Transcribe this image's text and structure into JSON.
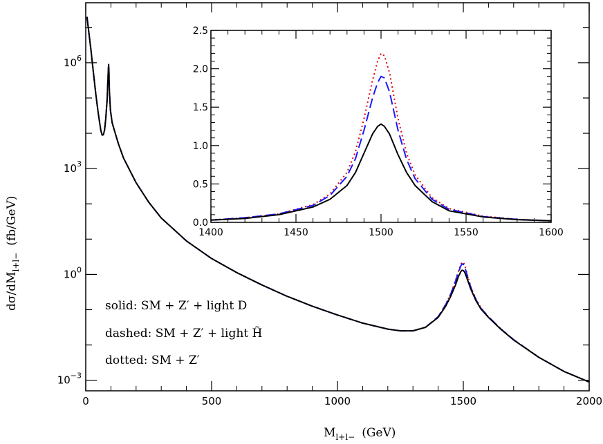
{
  "chart_data": [
    {
      "type": "line",
      "xlabel": "M_{l+l-} (GeV)",
      "xlabel_main": "M",
      "xlabel_sub": "l+l−",
      "xlabel_unit": "(GeV)",
      "ylabel": "dσ/dM_{l+l-} (fb/GeV)",
      "ylabel_main": "dσ/dM",
      "ylabel_sub": "l+l−",
      "ylabel_unit": "(fb/GeV)",
      "xlim": [
        0,
        2000
      ],
      "ylog": true,
      "ylim_log10": [
        -3.3,
        7.7
      ],
      "x_ticks": [
        {
          "value": 0,
          "label": "0"
        },
        {
          "value": 500,
          "label": "500"
        },
        {
          "value": 1000,
          "label": "1000"
        },
        {
          "value": 1500,
          "label": "1500"
        },
        {
          "value": 2000,
          "label": "2000"
        }
      ],
      "y_ticks": [
        {
          "log10": 6,
          "base": "10",
          "exp": "6"
        },
        {
          "log10": 3,
          "base": "10",
          "exp": "3"
        },
        {
          "log10": 0,
          "base": "10",
          "exp": "0"
        },
        {
          "log10": -3,
          "base": "10",
          "exp": "−3"
        }
      ],
      "legend": [
        {
          "style": "solid",
          "text": "solid: SM + Z′ + light D"
        },
        {
          "style": "dashed",
          "text": "dashed: SM + Z′ + light ",
          "text_suffix": "H̃"
        },
        {
          "style": "dotted",
          "text": "dotted: SM + Z′"
        }
      ],
      "legend_placement": "lower-left",
      "series": [
        {
          "style": "dotted",
          "color": "#e00000",
          "x": [
            5,
            10,
            20,
            30,
            40,
            50,
            60,
            65,
            70,
            75,
            80,
            85,
            88,
            90,
            91,
            92,
            94,
            98,
            105,
            115,
            130,
            150,
            200,
            250,
            300,
            400,
            500,
            600,
            700,
            800,
            900,
            1000,
            1100,
            1200,
            1250,
            1300,
            1350,
            1400,
            1430,
            1450,
            1470,
            1480,
            1490,
            1495,
            1500,
            1505,
            1510,
            1520,
            1530,
            1550,
            1570,
            1600,
            1650,
            1700,
            1800,
            1900,
            2000
          ],
          "log10y": [
            7.3,
            7.0,
            6.4,
            5.75,
            5.1,
            4.55,
            4.08,
            3.95,
            3.96,
            4.1,
            4.45,
            4.95,
            5.5,
            5.85,
            5.95,
            5.78,
            5.2,
            4.65,
            4.3,
            4.05,
            3.7,
            3.3,
            2.6,
            2.05,
            1.6,
            0.95,
            0.45,
            0.05,
            -0.3,
            -0.62,
            -0.9,
            -1.15,
            -1.38,
            -1.55,
            -1.6,
            -1.6,
            -1.5,
            -1.2,
            -0.85,
            -0.55,
            -0.15,
            0.08,
            0.28,
            0.35,
            0.34,
            0.28,
            0.15,
            -0.12,
            -0.35,
            -0.7,
            -0.95,
            -1.2,
            -1.55,
            -1.85,
            -2.35,
            -2.75,
            -3.05
          ]
        },
        {
          "style": "dashed",
          "color": "#1a1aff",
          "x": [
            5,
            10,
            20,
            30,
            40,
            50,
            60,
            65,
            70,
            75,
            80,
            85,
            88,
            90,
            91,
            92,
            94,
            98,
            105,
            115,
            130,
            150,
            200,
            250,
            300,
            400,
            500,
            600,
            700,
            800,
            900,
            1000,
            1100,
            1200,
            1250,
            1300,
            1350,
            1400,
            1430,
            1450,
            1470,
            1480,
            1490,
            1495,
            1500,
            1505,
            1510,
            1520,
            1530,
            1550,
            1570,
            1600,
            1650,
            1700,
            1800,
            1900,
            2000
          ],
          "log10y": [
            7.3,
            7.0,
            6.4,
            5.75,
            5.1,
            4.55,
            4.08,
            3.95,
            3.96,
            4.1,
            4.45,
            4.95,
            5.5,
            5.85,
            5.95,
            5.78,
            5.2,
            4.65,
            4.3,
            4.05,
            3.7,
            3.3,
            2.6,
            2.05,
            1.6,
            0.95,
            0.45,
            0.05,
            -0.3,
            -0.62,
            -0.9,
            -1.15,
            -1.38,
            -1.55,
            -1.6,
            -1.6,
            -1.5,
            -1.2,
            -0.86,
            -0.56,
            -0.17,
            0.05,
            0.24,
            0.3,
            0.28,
            0.23,
            0.11,
            -0.14,
            -0.37,
            -0.71,
            -0.96,
            -1.2,
            -1.55,
            -1.85,
            -2.35,
            -2.75,
            -3.05
          ]
        },
        {
          "style": "solid",
          "color": "#000000",
          "x": [
            5,
            10,
            20,
            30,
            40,
            50,
            60,
            65,
            70,
            75,
            80,
            85,
            88,
            90,
            91,
            92,
            94,
            98,
            105,
            115,
            130,
            150,
            200,
            250,
            300,
            400,
            500,
            600,
            700,
            800,
            900,
            1000,
            1100,
            1200,
            1250,
            1300,
            1350,
            1400,
            1430,
            1450,
            1470,
            1480,
            1490,
            1495,
            1500,
            1505,
            1510,
            1520,
            1530,
            1550,
            1570,
            1600,
            1650,
            1700,
            1800,
            1900,
            2000
          ],
          "log10y": [
            7.3,
            7.0,
            6.4,
            5.75,
            5.1,
            4.55,
            4.08,
            3.95,
            3.96,
            4.1,
            4.45,
            4.95,
            5.5,
            5.85,
            5.95,
            5.78,
            5.2,
            4.65,
            4.3,
            4.05,
            3.7,
            3.3,
            2.6,
            2.05,
            1.6,
            0.95,
            0.45,
            0.05,
            -0.3,
            -0.62,
            -0.9,
            -1.15,
            -1.38,
            -1.55,
            -1.6,
            -1.6,
            -1.5,
            -1.22,
            -0.9,
            -0.62,
            -0.28,
            -0.07,
            0.08,
            0.12,
            0.11,
            0.07,
            -0.02,
            -0.22,
            -0.42,
            -0.74,
            -0.98,
            -1.22,
            -1.56,
            -1.86,
            -2.35,
            -2.75,
            -3.05
          ]
        }
      ]
    },
    {
      "type": "line",
      "placement": "inset",
      "xlim": [
        1400,
        1600
      ],
      "ylim": [
        0,
        2.5
      ],
      "x_ticks": [
        "1400",
        "1450",
        "1500",
        "1550",
        "1600"
      ],
      "x_tick_values": [
        1400,
        1450,
        1500,
        1550,
        1600
      ],
      "y_ticks": [
        "0.0",
        "0.5",
        "1.0",
        "1.5",
        "2.0",
        "2.5"
      ],
      "y_tick_values": [
        0,
        0.5,
        1.0,
        1.5,
        2.0,
        2.5
      ],
      "series": [
        {
          "style": "dotted",
          "color": "#e00000",
          "x": [
            1400,
            1420,
            1440,
            1460,
            1470,
            1480,
            1485,
            1490,
            1495,
            1498,
            1500,
            1502,
            1505,
            1510,
            1515,
            1520,
            1530,
            1540,
            1560,
            1580,
            1600
          ],
          "y": [
            0.03,
            0.06,
            0.11,
            0.23,
            0.37,
            0.65,
            0.92,
            1.35,
            1.85,
            2.1,
            2.2,
            2.17,
            1.95,
            1.35,
            0.9,
            0.62,
            0.32,
            0.18,
            0.08,
            0.04,
            0.02
          ]
        },
        {
          "style": "dashed",
          "color": "#1a1aff",
          "x": [
            1400,
            1420,
            1440,
            1460,
            1470,
            1480,
            1485,
            1490,
            1495,
            1498,
            1500,
            1502,
            1505,
            1510,
            1515,
            1520,
            1530,
            1540,
            1560,
            1580,
            1600
          ],
          "y": [
            0.03,
            0.06,
            0.11,
            0.22,
            0.35,
            0.6,
            0.83,
            1.2,
            1.62,
            1.82,
            1.9,
            1.88,
            1.7,
            1.2,
            0.82,
            0.57,
            0.3,
            0.17,
            0.075,
            0.038,
            0.02
          ]
        },
        {
          "style": "solid",
          "color": "#000000",
          "x": [
            1400,
            1420,
            1440,
            1460,
            1470,
            1480,
            1485,
            1490,
            1495,
            1498,
            1500,
            1502,
            1505,
            1510,
            1515,
            1520,
            1530,
            1540,
            1560,
            1580,
            1600
          ],
          "y": [
            0.03,
            0.05,
            0.1,
            0.2,
            0.3,
            0.48,
            0.65,
            0.9,
            1.15,
            1.25,
            1.28,
            1.25,
            1.15,
            0.88,
            0.65,
            0.48,
            0.27,
            0.15,
            0.07,
            0.035,
            0.02
          ]
        }
      ]
    }
  ]
}
